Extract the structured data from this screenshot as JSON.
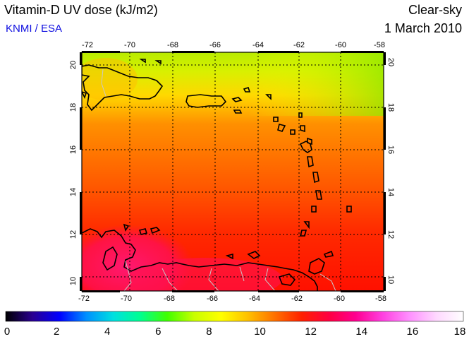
{
  "header": {
    "title": "Vitamin-D UV dose (kJ/m2)",
    "agency": "KNMI / ESA",
    "mode": "Clear-sky",
    "date": "1 March 2010"
  },
  "map": {
    "region": "Caribbean",
    "lon_range": [
      -72,
      -58
    ],
    "lat_range": [
      9.5,
      20.5
    ],
    "lon_ticks": [
      "-72",
      "-70",
      "-68",
      "-66",
      "-64",
      "-62",
      "-60",
      "-58"
    ],
    "lat_ticks": [
      "10",
      "12",
      "14",
      "16",
      "18",
      "20"
    ],
    "lat_tick_values": [
      10,
      12,
      14,
      16,
      18,
      20
    ],
    "lon_tick_values": [
      -72,
      -70,
      -68,
      -66,
      -64,
      -62,
      -60,
      -58
    ]
  },
  "colorbar": {
    "min": 0,
    "max": 18,
    "tick_labels": [
      "0",
      "2",
      "4",
      "6",
      "8",
      "10",
      "12",
      "14",
      "16",
      "18"
    ],
    "tick_values": [
      0,
      2,
      4,
      6,
      8,
      10,
      12,
      14,
      16,
      18
    ],
    "colors": [
      "#000000",
      "#2a0090",
      "#0000ff",
      "#0090ff",
      "#00e0e0",
      "#00ff90",
      "#40ff00",
      "#c8ff00",
      "#ffff00",
      "#ffc000",
      "#ff7000",
      "#ff2000",
      "#ff0040",
      "#ff0090",
      "#ff40e0",
      "#ff90ff",
      "#ffd8ff",
      "#ffffff"
    ]
  },
  "colors": {
    "ocean_north": "#a0e800",
    "ocean_south": "#ff3000",
    "land_hot": "#ff2070",
    "grid": "#000000",
    "coast": "#000000",
    "border": "#c8c8c8",
    "agency_text": "#1010e0"
  }
}
